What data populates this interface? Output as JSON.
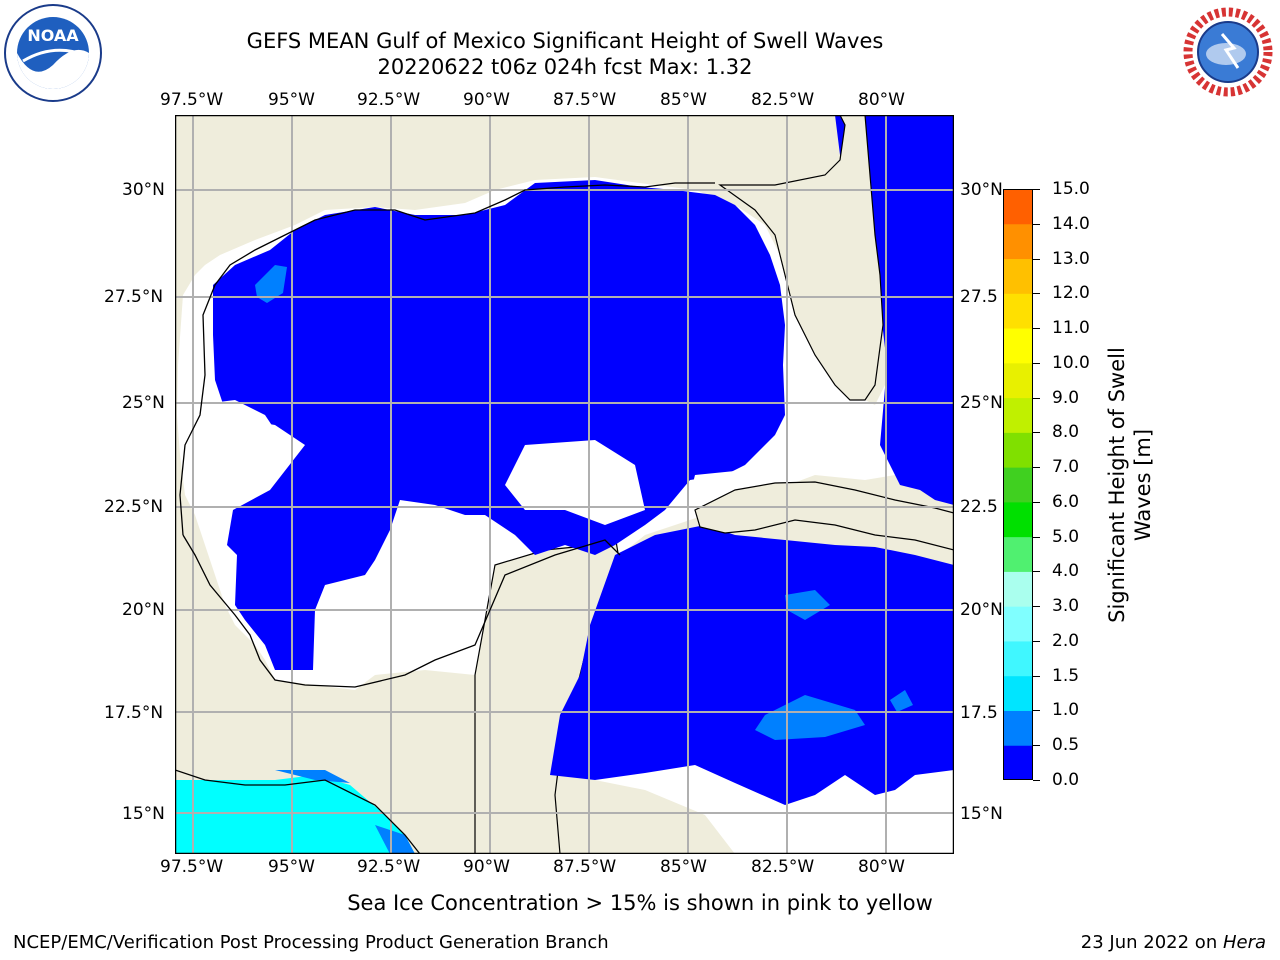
{
  "title_line1": "GEFS MEAN Gulf of Mexico Significant Height of Swell Waves",
  "title_line2": "20220622 t06z 024h fcst   Max: 1.32",
  "lon_labels": [
    "97.5°W",
    "95°W",
    "92.5°W",
    "90°W",
    "87.5°W",
    "85°W",
    "82.5°W",
    "80°W"
  ],
  "lat_labels_left": [
    "30°N",
    "27.5°N",
    "25°N",
    "22.5°N",
    "20°N",
    "17.5°N",
    "15°N"
  ],
  "lat_labels_right": [
    "30°N",
    "27.5",
    "25°N",
    "22.5",
    "20°N",
    "17.5",
    "15°N"
  ],
  "colorbar": {
    "title_line1": "Significant Height of Swell",
    "title_line2": "Waves [m]",
    "ticks": [
      "15.0",
      "14.0",
      "13.0",
      "12.0",
      "11.0",
      "10.0",
      "9.0",
      "8.0",
      "7.0",
      "6.0",
      "5.0",
      "4.0",
      "3.0",
      "2.0",
      "1.5",
      "1.0",
      "0.5",
      "0.0"
    ],
    "colors": [
      "#0000ff",
      "#0080ff",
      "#00e5ff",
      "#40f7ff",
      "#80ffff",
      "#aaffee",
      "#50f070",
      "#00e000",
      "#40d020",
      "#80e000",
      "#c0f000",
      "#e8f000",
      "#ffff00",
      "#ffe000",
      "#ffc000",
      "#ff9000",
      "#ff6000",
      "#ff2800",
      "#ff0000"
    ]
  },
  "sea_ice_note": "Sea Ice Concentration > 15% is shown in pink to yellow",
  "footer_left": "NCEP/EMC/Verification Post Processing Product Generation Branch",
  "footer_right_date": "23 Jun 2022 on ",
  "footer_right_host": "Hera",
  "logo_left": "NOAA",
  "logo_right": "NATIONAL WEATHER SERVICE",
  "land_color": "#efeddc",
  "water_color": "#0000ff"
}
